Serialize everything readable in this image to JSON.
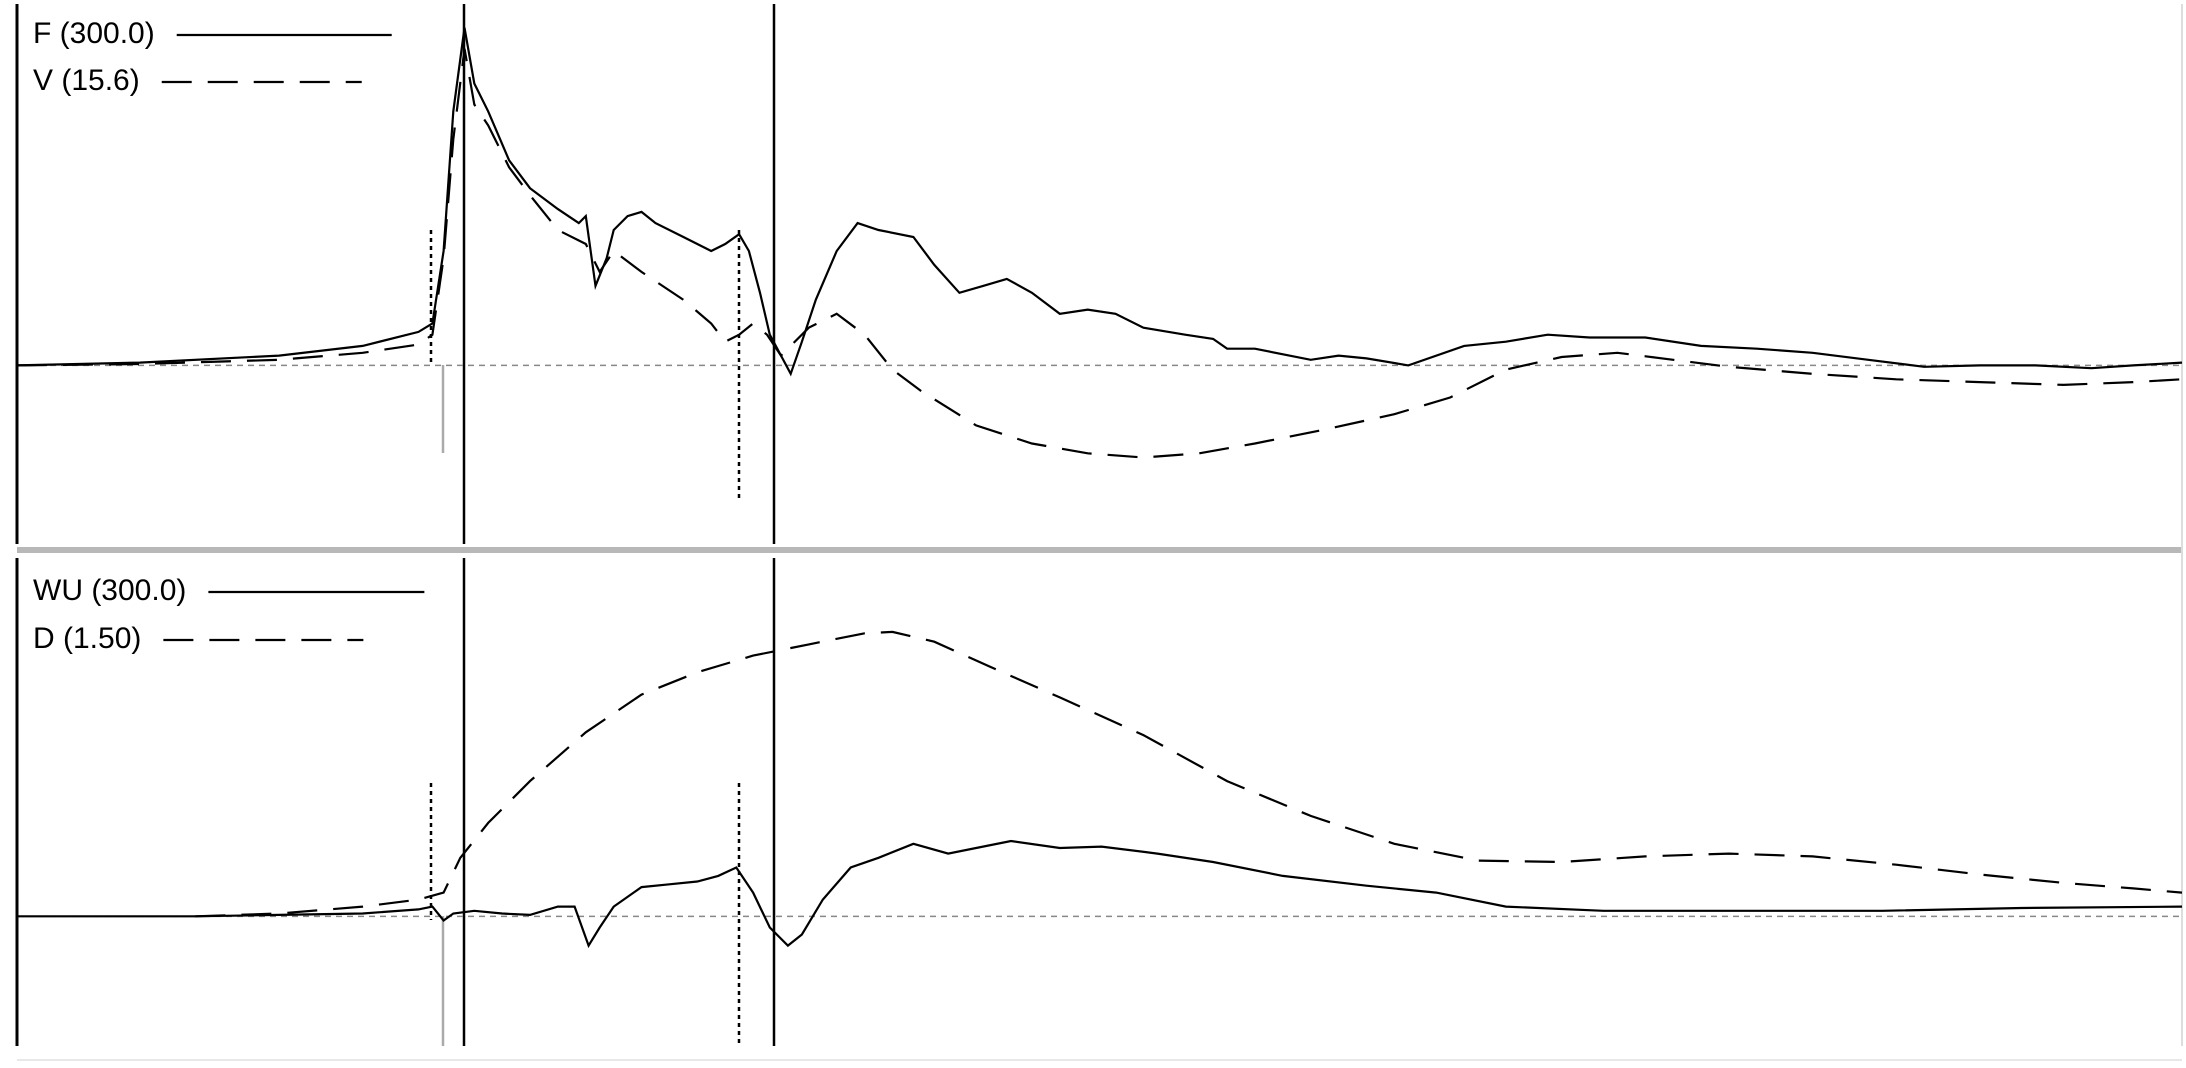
{
  "chart_data": [
    {
      "type": "line",
      "xlim": [
        0,
        1553
      ],
      "ylim": [
        -128,
        259
      ],
      "zero_line": true,
      "series": [
        {
          "name": "F (300.0)",
          "color": "#000000",
          "style": "solid",
          "x": [
            0,
            88,
            188,
            248,
            288,
            298,
            306,
            313,
            321,
            328,
            338,
            353,
            368,
            388,
            403,
            408,
            415,
            423,
            428,
            438,
            448,
            458,
            478,
            498,
            508,
            518,
            525,
            533,
            540,
            548,
            555,
            563,
            573,
            588,
            603,
            618,
            643,
            658,
            676,
            693,
            710,
            728,
            748,
            768,
            788,
            808,
            838,
            858,
            868,
            888,
            928,
            948,
            968,
            998,
            1038,
            1068,
            1098,
            1128,
            1168,
            1208,
            1248,
            1288,
            1328,
            1368,
            1408,
            1448,
            1488,
            1518,
            1553
          ],
          "values": [
            0,
            2,
            7,
            14,
            24,
            30,
            82,
            182,
            242,
            202,
            182,
            147,
            127,
            112,
            102,
            107,
            57,
            77,
            97,
            107,
            110,
            102,
            92,
            82,
            87,
            94,
            82,
            52,
            22,
            7,
            -6,
            17,
            47,
            82,
            102,
            97,
            92,
            72,
            52,
            57,
            62,
            52,
            37,
            40,
            37,
            27,
            22,
            19,
            12,
            12,
            4,
            7,
            5,
            0,
            14,
            17,
            22,
            20,
            20,
            14,
            12,
            9,
            4,
            -1,
            0,
            0,
            -2,
            0,
            2
          ]
        },
        {
          "name": "V (15.6)",
          "color": "#000000",
          "style": "dashed",
          "x": [
            0,
            88,
            188,
            248,
            288,
            298,
            306,
            313,
            321,
            328,
            338,
            353,
            368,
            388,
            408,
            418,
            428,
            448,
            478,
            498,
            508,
            518,
            528,
            538,
            548,
            568,
            588,
            608,
            628,
            648,
            688,
            728,
            768,
            808,
            848,
            888,
            938,
            988,
            1028,
            1068,
            1108,
            1148,
            1188,
            1228,
            1288,
            1348,
            1408,
            1468,
            1518,
            1553
          ],
          "values": [
            0,
            1,
            4,
            9,
            15,
            22,
            77,
            162,
            227,
            187,
            172,
            142,
            122,
            97,
            87,
            67,
            82,
            67,
            47,
            30,
            17,
            22,
            30,
            22,
            7,
            27,
            37,
            22,
            -3,
            -18,
            -43,
            -56,
            -63,
            -66,
            -63,
            -56,
            -46,
            -35,
            -23,
            -3,
            6,
            9,
            4,
            -1,
            -6,
            -10,
            -12,
            -14,
            -12,
            -10
          ]
        }
      ]
    },
    {
      "type": "line",
      "xlim": [
        0,
        1553
      ],
      "ylim": [
        -93,
        257
      ],
      "zero_line": true,
      "series": [
        {
          "name": "WU (300.0)",
          "color": "#000000",
          "style": "solid",
          "x": [
            0,
            128,
            188,
            248,
            288,
            298,
            306,
            313,
            328,
            348,
            368,
            388,
            400,
            410,
            418,
            428,
            448,
            468,
            488,
            503,
            516,
            528,
            540,
            553,
            563,
            578,
            598,
            618,
            643,
            668,
            688,
            713,
            748,
            778,
            818,
            858,
            908,
            968,
            1018,
            1068,
            1138,
            1238,
            1338,
            1438,
            1553
          ],
          "values": [
            0,
            0,
            1,
            2,
            5,
            7,
            -3,
            2,
            4,
            2,
            1,
            7,
            7,
            -21,
            -8,
            7,
            21,
            23,
            25,
            29,
            35,
            17,
            -8,
            -21,
            -13,
            12,
            35,
            42,
            52,
            45,
            49,
            54,
            49,
            50,
            45,
            39,
            29,
            22,
            17,
            7,
            4,
            4,
            4,
            6,
            7
          ]
        },
        {
          "name": "D (1.50)",
          "color": "#000000",
          "style": "dashed",
          "x": [
            128,
            188,
            248,
            288,
            306,
            318,
            338,
            368,
            408,
            448,
            488,
            528,
            568,
            608,
            628,
            658,
            698,
            748,
            808,
            868,
            928,
            988,
            1048,
            1108,
            1168,
            1228,
            1288,
            1348,
            1408,
            1468,
            1518,
            1553
          ],
          "values": [
            0,
            2,
            7,
            12,
            17,
            42,
            67,
            97,
            132,
            159,
            175,
            187,
            195,
            203,
            204,
            197,
            179,
            157,
            130,
            97,
            72,
            52,
            40,
            39,
            43,
            45,
            43,
            37,
            30,
            24,
            20,
            17
          ]
        }
      ]
    }
  ]
}
